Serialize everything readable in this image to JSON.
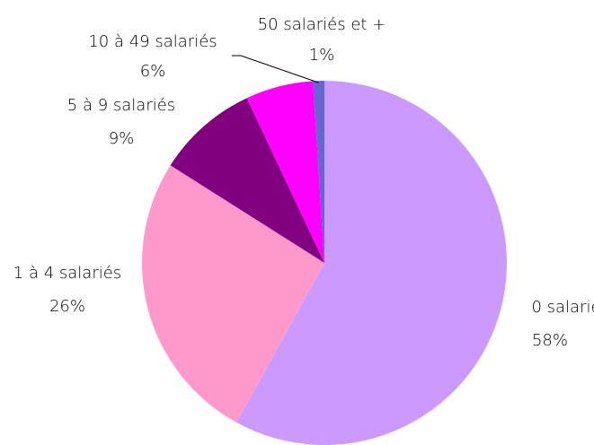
{
  "chart_data": {
    "type": "pie",
    "categories": [
      "0 salarié",
      "1 à 4 salariés",
      "5 à 9 salariés",
      "10 à 49 salariés",
      "50 salariés et +"
    ],
    "values": [
      58,
      26,
      9,
      6,
      1
    ],
    "value_labels": [
      "58%",
      "26%",
      "9%",
      "6%",
      "1%"
    ],
    "colors": [
      "#cc99ff",
      "#ff99cc",
      "#800080",
      "#ff00ff",
      "#6666cc"
    ]
  }
}
